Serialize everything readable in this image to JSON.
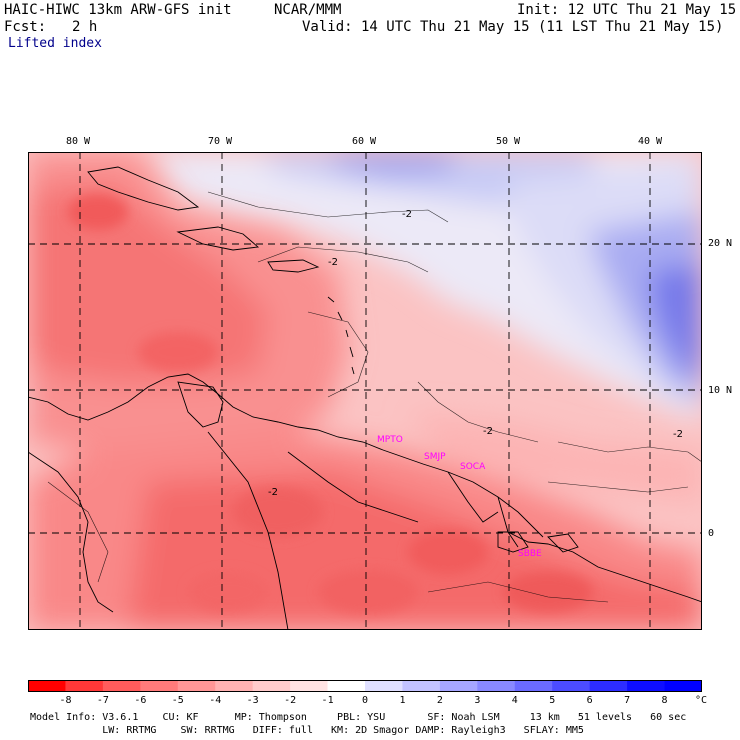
{
  "header": {
    "model": "HAIC-HIWC 13km ARW-GFS init",
    "org": "NCAR/MMM",
    "init": "Init: 12 UTC Thu 21 May 15",
    "fcst_label": "Fcst:",
    "fcst_value": "2 h",
    "valid": "Valid: 14 UTC Thu 21 May 15 (11 LST Thu 21 May 15)",
    "field": "Lifted index"
  },
  "map": {
    "lon_labels": [
      "80 W",
      "70 W",
      "60 W",
      "50 W",
      "40 W"
    ],
    "lat_labels": [
      "20 N",
      "10 N",
      "0"
    ],
    "contour_labels": [
      "-2",
      "-2",
      "-2",
      "-2",
      "-2"
    ],
    "stations": [
      "MPTO",
      "SMJP",
      "SOCA",
      "SBBE"
    ],
    "colors": {
      "strong_negative": "#f25a5a",
      "negative": "#f98a8a",
      "weak_negative": "#fdc8c8",
      "neutral": "#f7f4f7",
      "weak_positive": "#d4d6f7",
      "positive": "#9ca0f2",
      "strong_positive": "#6b6fe6",
      "station_label": "#ff00ff",
      "grid": "#000000"
    }
  },
  "colorbar": {
    "ticks": [
      "-8",
      "-7",
      "-6",
      "-5",
      "-4",
      "-3",
      "-2",
      "-1",
      "0",
      "1",
      "2",
      "3",
      "4",
      "5",
      "6",
      "7",
      "8"
    ],
    "unit": "°C",
    "colors": [
      "#ff0000",
      "#ff3838",
      "#ff5c5c",
      "#ff7b7b",
      "#ff9797",
      "#ffb2b2",
      "#ffcbcb",
      "#ffe3e3",
      "#ffffff",
      "#e0e0ff",
      "#c3c3ff",
      "#a6a6ff",
      "#8989ff",
      "#6b6bff",
      "#4c4cff",
      "#2d2dff",
      "#0e0eff",
      "#0000ff"
    ]
  },
  "model_info": {
    "line1": "Model Info: V3.6.1    CU: KF      MP: Thompson     PBL: YSU       SF: Noah LSM     13 km   51 levels   60 sec",
    "line2": "            LW: RRTMG    SW: RRTMG   DIFF: full   KM: 2D Smagor DAMP: Rayleigh3   SFLAY: MM5"
  }
}
